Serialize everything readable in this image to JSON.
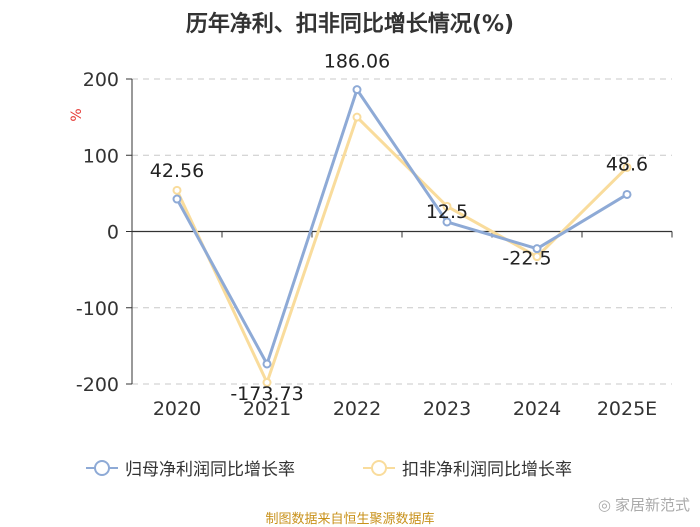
{
  "title": "历年净利、扣非同比增长情况(%)",
  "source": "制图数据来自恒生聚源数据库",
  "watermark": "家居新范式",
  "chart_data": {
    "type": "line",
    "categories": [
      "2020",
      "2021",
      "2022",
      "2023",
      "2024",
      "2025E"
    ],
    "ylabel": "%",
    "ylim": [
      -200,
      200
    ],
    "yticks": [
      200,
      100,
      0,
      -100,
      -200
    ],
    "ytick_labels": [
      "200",
      "100",
      "0",
      "-100",
      "-200"
    ],
    "grid": true,
    "legend_position": "bottom",
    "series": [
      {
        "name": "归母净利润同比增长率",
        "color": "#8eaad6",
        "values": [
          42.56,
          -173.73,
          186.06,
          12.5,
          -22.5,
          48.6
        ],
        "labels": [
          "42.56",
          "-173.73",
          "186.06",
          "12.5",
          "-22.5",
          "48.6"
        ]
      },
      {
        "name": "扣非净利润同比增长率",
        "color": "#f9dc9c",
        "values": [
          54,
          -198,
          150,
          33,
          -33,
          84
        ]
      }
    ]
  }
}
